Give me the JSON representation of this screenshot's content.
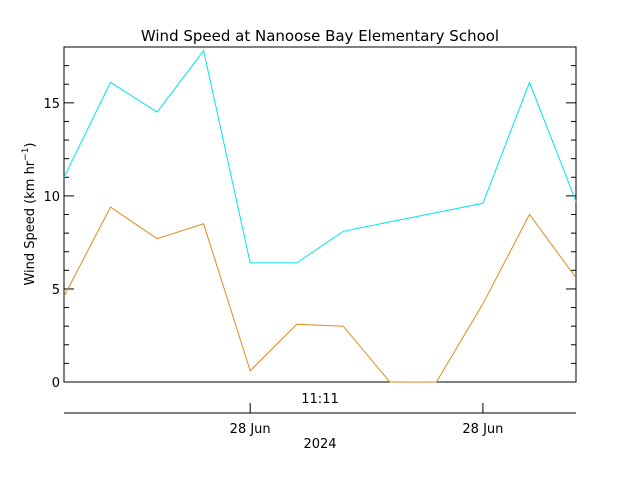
{
  "chart_data": {
    "type": "line",
    "title": "Wind Speed at Nanoose Bay Elementary School",
    "ylabel_main": "Wind Speed (km hr",
    "ylabel_sup": "−1",
    "ylabel_close": ")",
    "top_time_label": "11:11",
    "xlabel": "2024",
    "x_ticks": [
      {
        "label": "28 Jun",
        "x": 4
      },
      {
        "label": "28 Jun",
        "x": 9
      }
    ],
    "x": [
      0,
      1,
      2,
      3,
      4,
      5,
      6,
      7,
      8,
      9,
      10,
      11
    ],
    "xlim": [
      0,
      11
    ],
    "ylim": [
      0,
      18
    ],
    "y_ticks": [
      0,
      5,
      10,
      15
    ],
    "series": [
      {
        "color": "#00e5ee",
        "values": [
          11.0,
          16.1,
          14.5,
          17.8,
          6.4,
          6.4,
          8.1,
          8.6,
          9.1,
          9.6,
          16.1,
          9.7
        ]
      },
      {
        "color": "#e08a1e",
        "values": [
          4.6,
          9.4,
          7.7,
          8.5,
          0.6,
          3.1,
          3.0,
          0.0,
          0.0,
          4.2,
          9.0,
          5.6
        ]
      }
    ]
  }
}
